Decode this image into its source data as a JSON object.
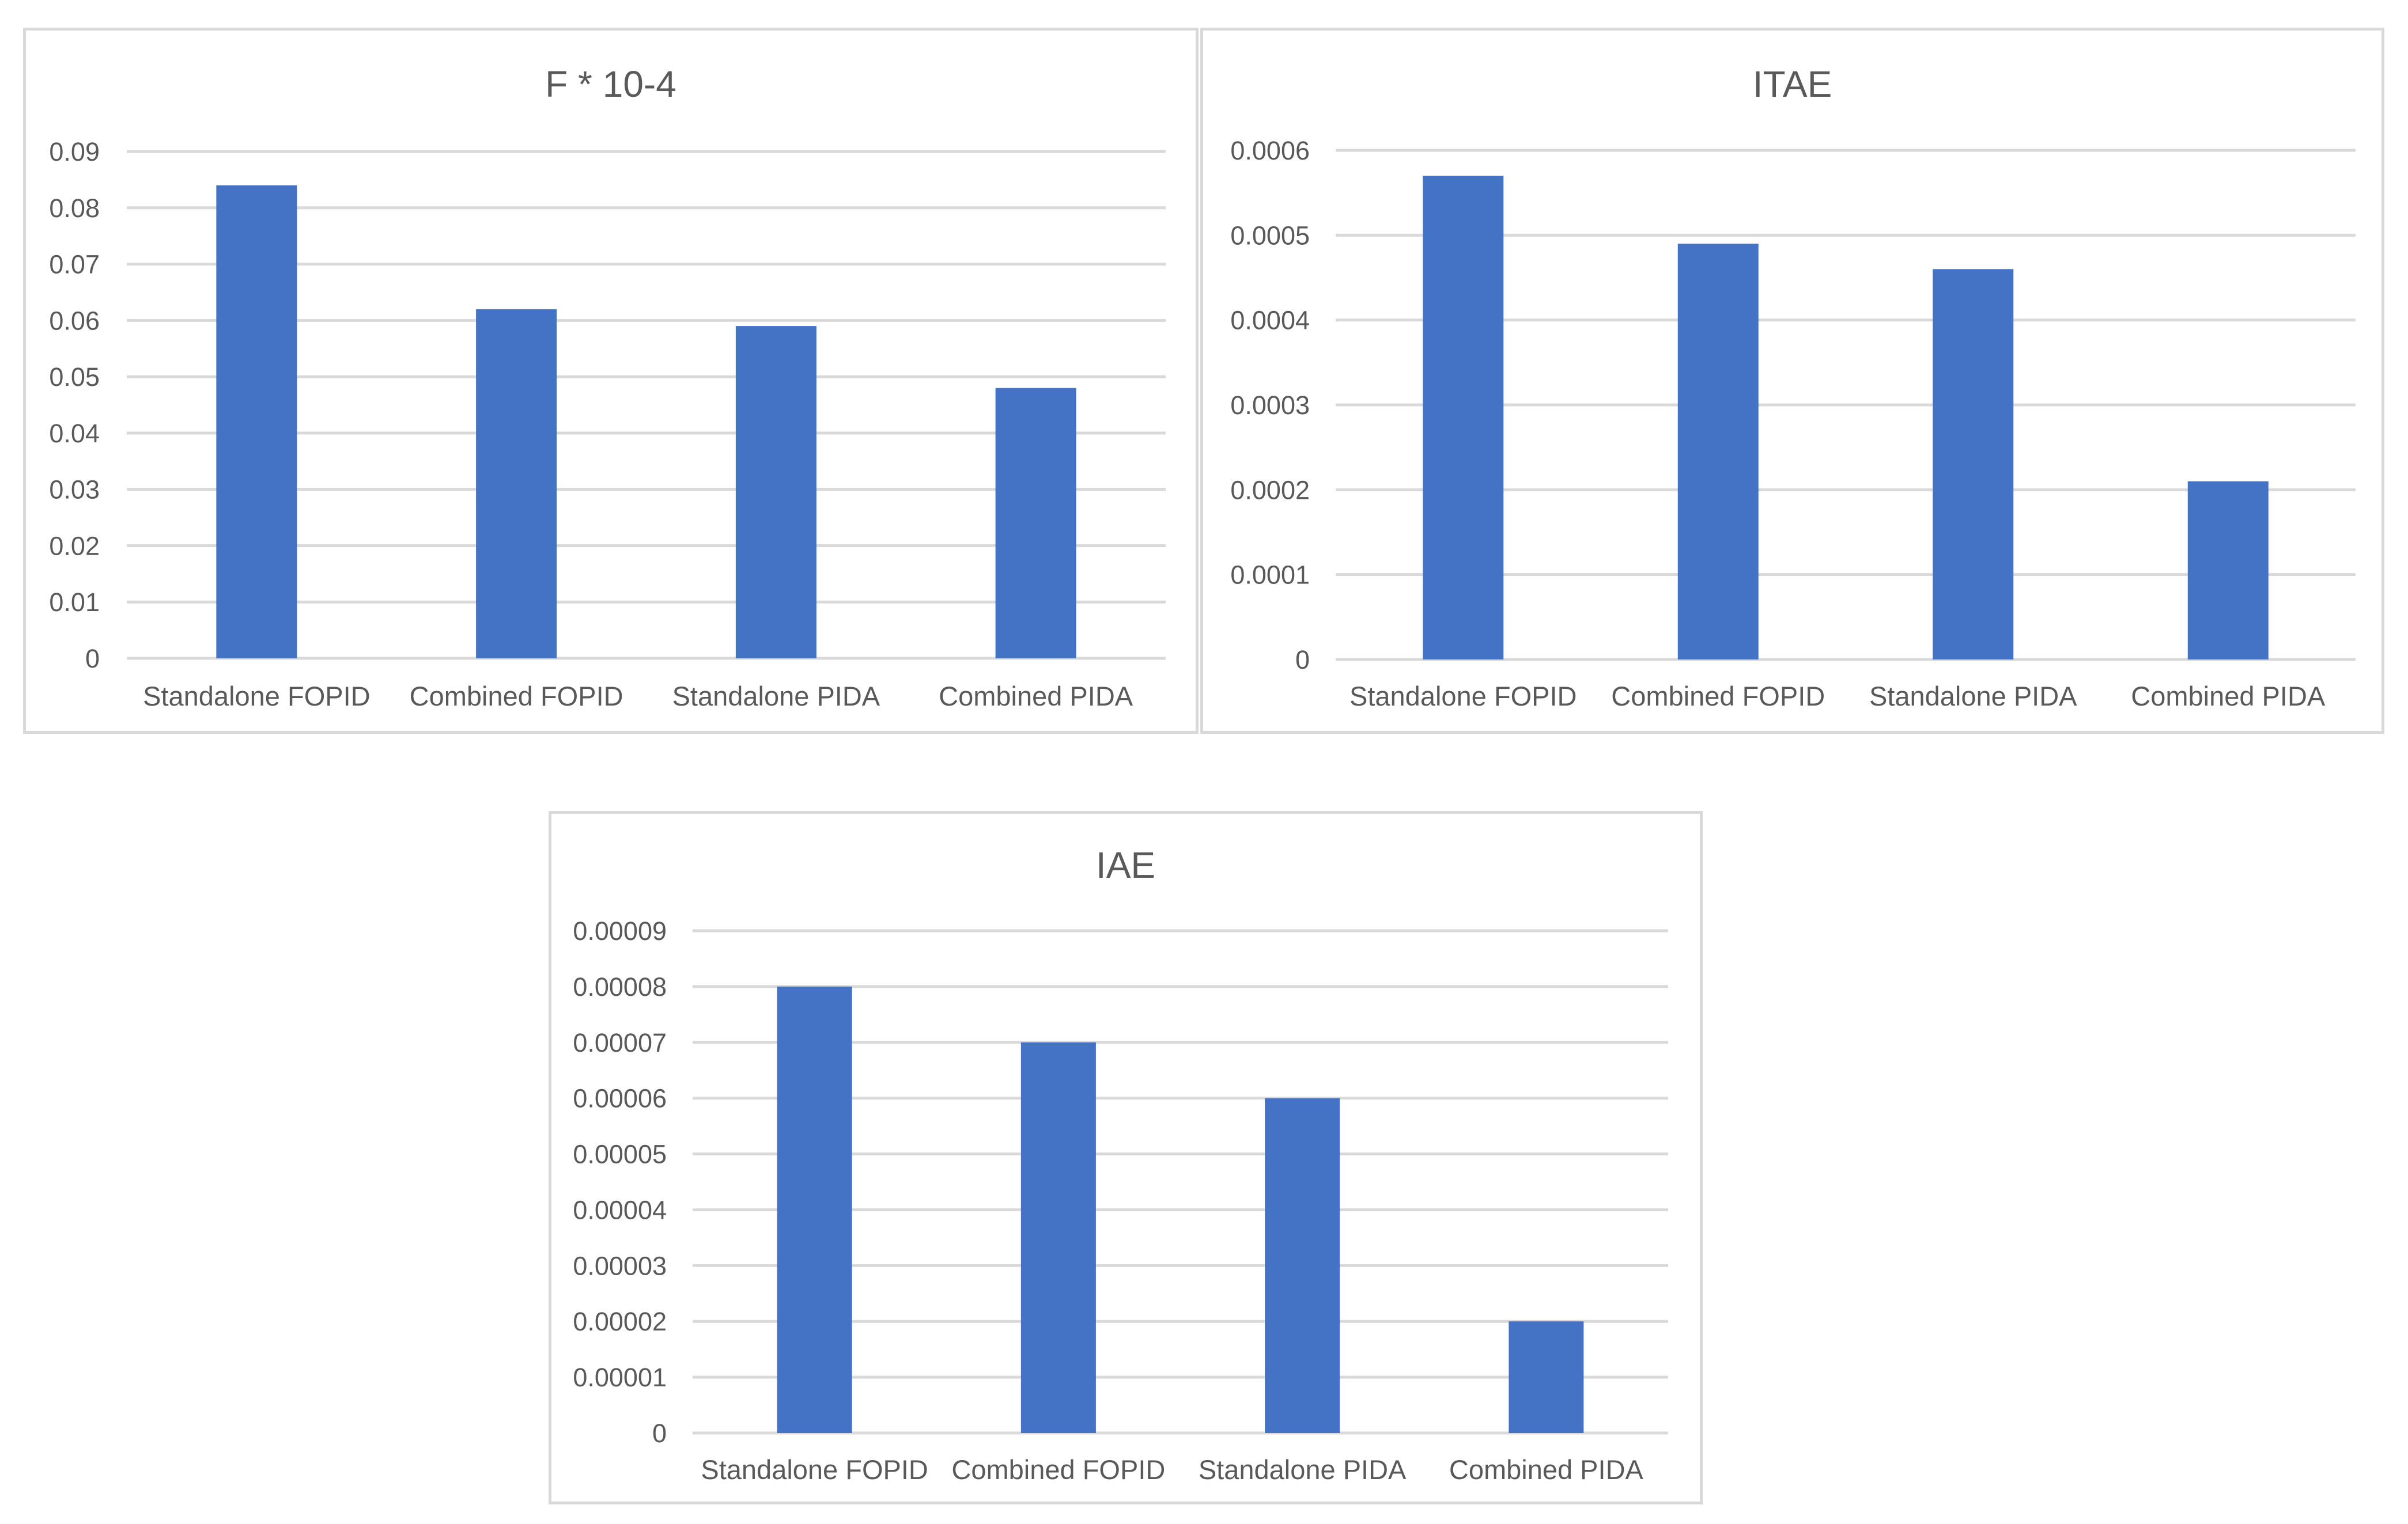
{
  "chart_data": [
    {
      "type": "bar",
      "title": "F * 10-4",
      "categories": [
        "Standalone FOPID",
        "Combined FOPID",
        "Standalone PIDA",
        "Combined PIDA"
      ],
      "values": [
        0.084,
        0.062,
        0.059,
        0.048
      ],
      "yticks": [
        "0",
        "0.01",
        "0.02",
        "0.03",
        "0.04",
        "0.05",
        "0.06",
        "0.07",
        "0.08",
        "0.09"
      ],
      "ylim": [
        0,
        0.09
      ],
      "xlabel": "",
      "ylabel": "",
      "grid": true,
      "legend": "none",
      "bar_color": "#4472c4"
    },
    {
      "type": "bar",
      "title": "ITAE",
      "categories": [
        "Standalone FOPID",
        "Combined FOPID",
        "Standalone PIDA",
        "Combined PIDA"
      ],
      "values": [
        0.00057,
        0.00049,
        0.00046,
        0.00021
      ],
      "yticks": [
        "0",
        "0.0001",
        "0.0002",
        "0.0003",
        "0.0004",
        "0.0005",
        "0.0006"
      ],
      "ylim": [
        0,
        0.0006
      ],
      "xlabel": "",
      "ylabel": "",
      "grid": true,
      "legend": "none",
      "bar_color": "#4472c4"
    },
    {
      "type": "bar",
      "title": "IAE",
      "categories": [
        "Standalone FOPID",
        "Combined FOPID",
        "Standalone PIDA",
        "Combined PIDA"
      ],
      "values": [
        8e-05,
        7e-05,
        6e-05,
        2e-05
      ],
      "yticks": [
        "0",
        "0.00001",
        "0.00002",
        "0.00003",
        "0.00004",
        "0.00005",
        "0.00006",
        "0.00007",
        "0.00008",
        "0.00009"
      ],
      "ylim": [
        0,
        9e-05
      ],
      "xlabel": "",
      "ylabel": "",
      "grid": true,
      "legend": "none",
      "bar_color": "#4472c4"
    }
  ]
}
